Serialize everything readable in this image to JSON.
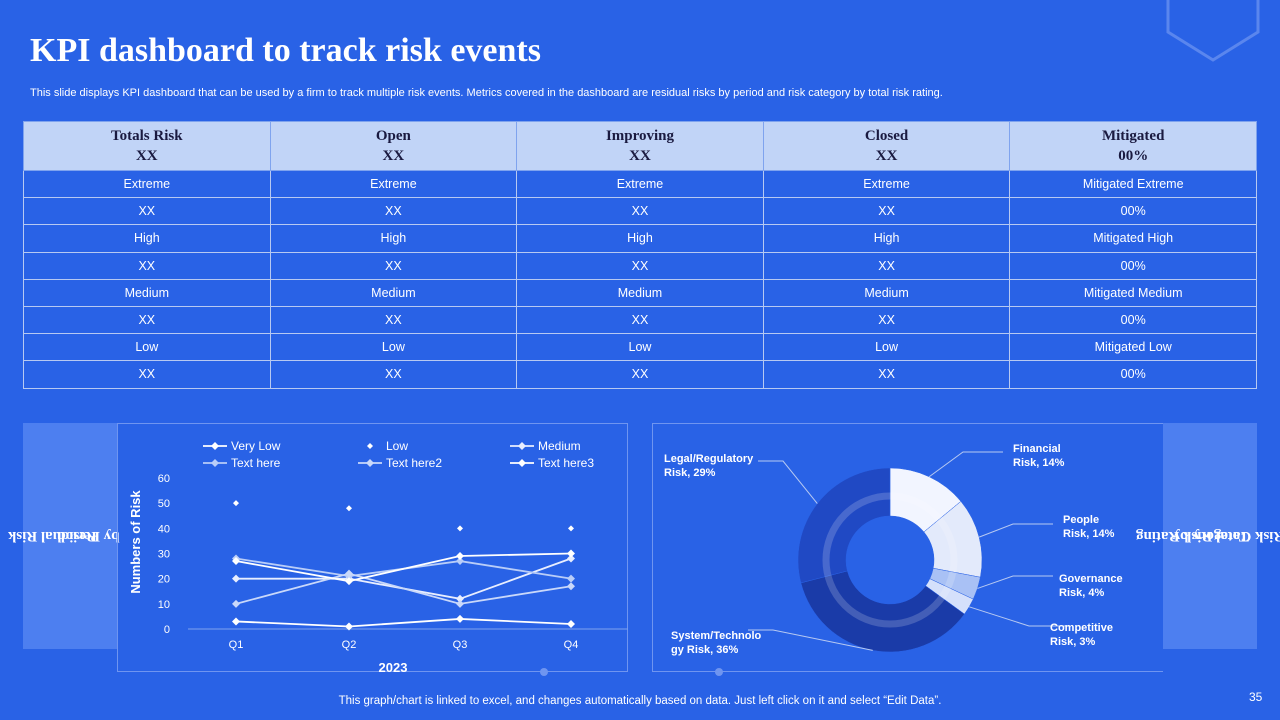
{
  "title": "KPI dashboard to track risk events",
  "subtitle": "This slide displays KPI dashboard that can be used by a firm to track multiple risk events. Metrics covered in the dashboard are residual risks by period and risk category by total risk rating.",
  "table": {
    "headers": [
      {
        "label": "Totals Risk",
        "value": "XX"
      },
      {
        "label": "Open",
        "value": "XX"
      },
      {
        "label": "Improving",
        "value": "XX"
      },
      {
        "label": "Closed",
        "value": "XX"
      },
      {
        "label": "Mitigated",
        "value": "00%"
      }
    ],
    "rows": [
      [
        "Extreme",
        "Extreme",
        "Extreme",
        "Extreme",
        "Mitigated Extreme"
      ],
      [
        "XX",
        "XX",
        "XX",
        "XX",
        "00%"
      ],
      [
        "High",
        "High",
        "High",
        "High",
        "Mitigated High"
      ],
      [
        "XX",
        "XX",
        "XX",
        "XX",
        "00%"
      ],
      [
        "Medium",
        "Medium",
        "Medium",
        "Medium",
        "Mitigated Medium"
      ],
      [
        "XX",
        "XX",
        "XX",
        "XX",
        "00%"
      ],
      [
        "Low",
        "Low",
        "Low",
        "Low",
        "Mitigated Low"
      ],
      [
        "XX",
        "XX",
        "XX",
        "XX",
        "00%"
      ]
    ]
  },
  "left_label": {
    "line1": "Residual Risk",
    "line2": "by Period"
  },
  "right_label": {
    "line1": "Risk Category by",
    "line2": "Total Risk Rating"
  },
  "footer": "This graph/chart is linked to excel,  and changes automatically based on data. Just left click on it and select “Edit Data”.",
  "page_number": "35",
  "chart_data": [
    {
      "type": "line",
      "title": "",
      "xlabel": "2023",
      "ylabel": "Numbers of Risk",
      "categories": [
        "Q1",
        "Q2",
        "Q3",
        "Q4"
      ],
      "ylim": [
        0,
        60
      ],
      "yticks": [
        0,
        10,
        20,
        30,
        40,
        50,
        60
      ],
      "series": [
        {
          "name": "Very Low",
          "values": [
            3,
            1,
            4,
            2
          ],
          "line": true,
          "color": "#ffffff"
        },
        {
          "name": "Low",
          "values": [
            50,
            48,
            40,
            40
          ],
          "line": false,
          "color": "#ffffff"
        },
        {
          "name": "Medium",
          "values": [
            20,
            20,
            12,
            28
          ],
          "line": true,
          "color": "#e8eeff"
        },
        {
          "name": "Text here",
          "values": [
            28,
            21,
            27,
            20
          ],
          "line": true,
          "color": "#b9cdf8"
        },
        {
          "name": "Text here2",
          "values": [
            10,
            22,
            10,
            17
          ],
          "line": true,
          "color": "#c9d8fa"
        },
        {
          "name": "Text here3",
          "values": [
            27,
            19,
            29,
            30
          ],
          "line": true,
          "color": "#ffffff"
        }
      ]
    },
    {
      "type": "pie",
      "title": "",
      "slices": [
        {
          "label": "Financial Risk, 14%",
          "line1": "Financial",
          "line2": "Risk, 14%",
          "value": 14,
          "color": "#f2f5ff"
        },
        {
          "label": "People Risk, 14%",
          "line1": "People",
          "line2": "Risk, 14%",
          "value": 14,
          "color": "#e3eafb"
        },
        {
          "label": "Governance Risk, 4%",
          "line1": "Governance",
          "line2": "Risk, 4%",
          "value": 4,
          "color": "#a9c1f5"
        },
        {
          "label": "Competitive Risk, 3%",
          "line1": "Competitive",
          "line2": "Risk, 3%",
          "value": 3,
          "color": "#d5e0fb"
        },
        {
          "label": "System/Technology Risk, 36%",
          "line1": "System/Technolo",
          "line2": "gy Risk, 36%",
          "value": 36,
          "color": "#1a3ba8"
        },
        {
          "label": "Legal/Regulatory Risk, 29%",
          "line1": "Legal/Regulatory",
          "line2": "Risk, 29%",
          "value": 29,
          "color": "#2049c4"
        }
      ]
    }
  ]
}
